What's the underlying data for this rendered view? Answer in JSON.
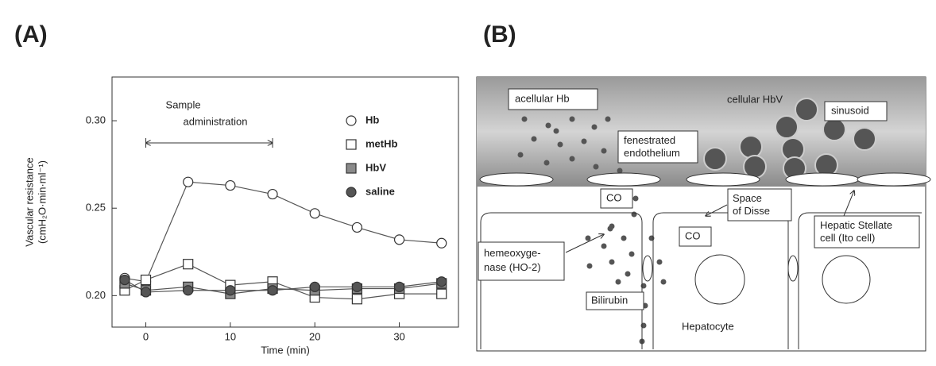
{
  "chart_data": {
    "type": "line",
    "title": "(A)",
    "x_label": "Time (min)",
    "y_label": [
      "Vascular resistance",
      "(cmH₂O·min·ml⁻¹)"
    ],
    "x": [
      -2.5,
      0,
      5,
      10,
      15,
      20,
      25,
      30,
      35
    ],
    "series": [
      {
        "name": "Hb",
        "marker": "circle",
        "color": "#ffffff",
        "values": [
          0.21,
          0.208,
          0.265,
          0.263,
          0.258,
          0.247,
          0.239,
          0.232,
          0.23
        ]
      },
      {
        "name": "metHb",
        "marker": "square",
        "color": "#ffffff",
        "values": [
          0.203,
          0.209,
          0.218,
          0.206,
          0.208,
          0.199,
          0.198,
          0.201,
          0.201
        ]
      },
      {
        "name": "HbV",
        "marker": "square",
        "color": "#8a8a8a",
        "values": [
          0.207,
          0.203,
          0.205,
          0.201,
          0.204,
          0.203,
          0.204,
          0.204,
          0.207
        ]
      },
      {
        "name": "saline",
        "marker": "circle",
        "color": "#555555",
        "values": [
          0.209,
          0.202,
          0.203,
          0.203,
          0.203,
          0.205,
          0.205,
          0.205,
          0.208
        ]
      }
    ],
    "line_color": "#555555",
    "annotation": {
      "text": [
        "Sample",
        "administration"
      ],
      "x_start": 0,
      "x_end": 15
    },
    "xlim": [
      -4,
      37
    ],
    "xticks": [
      0,
      10,
      20,
      30
    ],
    "ylim": [
      0.182,
      0.325
    ],
    "yticks": [
      {
        "value": 0.2,
        "label": "0.20"
      },
      0.25,
      {
        "value": 0.3,
        "label": "0.30"
      }
    ],
    "legend": "top-right"
  },
  "diagram": {
    "title": "(B)",
    "acellular_hb": "acellular Hb",
    "cellular_hbv": "cellular HbV",
    "sinusoid": "sinusoid",
    "endothelium": [
      "fenestrated",
      "endothelium"
    ],
    "co_1": "CO",
    "space_of_disse": [
      "Space",
      "of Disse"
    ],
    "co_2": "CO",
    "hemeoxygenase": [
      "hemeoxyge-",
      "nase (HO-2)"
    ],
    "bilirubin": "Bilirubin",
    "hepatocyte": "Hepatocyte",
    "stellate": [
      "Hepatic Stellate",
      "cell (Ito cell)"
    ]
  }
}
